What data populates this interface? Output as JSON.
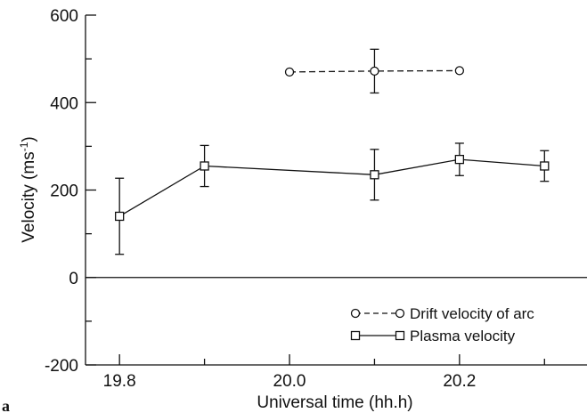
{
  "panel_label": "a",
  "chart_data": {
    "type": "line",
    "xlabel": "Universal time (hh.h)",
    "ylabel_main": "Velocity (ms",
    "ylabel_sup": "-1",
    "ylabel_close": ")",
    "xlim": [
      19.76,
      20.35
    ],
    "ylim": [
      -200,
      600
    ],
    "x_ticks": [
      19.8,
      20.0,
      20.2
    ],
    "x_tick_labels": [
      "19.8",
      "20.0",
      "20.2"
    ],
    "y_ticks": [
      -200,
      0,
      200,
      400,
      600
    ],
    "y_tick_labels": [
      "-200",
      "0",
      "200",
      "400",
      "600"
    ],
    "zero_line": 0,
    "legend_position": "lower-right",
    "series": [
      {
        "name": "Drift velocity of arc",
        "marker": "circle",
        "line_style": "dashed",
        "x": [
          20.0,
          20.1,
          20.2
        ],
        "y": [
          470,
          472,
          473
        ],
        "err": [
          0,
          50,
          0
        ]
      },
      {
        "name": "Plasma velocity",
        "marker": "square",
        "line_style": "solid",
        "x": [
          19.8,
          19.9,
          20.1,
          20.2,
          20.3
        ],
        "y": [
          140,
          255,
          235,
          270,
          255
        ],
        "err": [
          87,
          47,
          58,
          37,
          35
        ]
      }
    ]
  }
}
